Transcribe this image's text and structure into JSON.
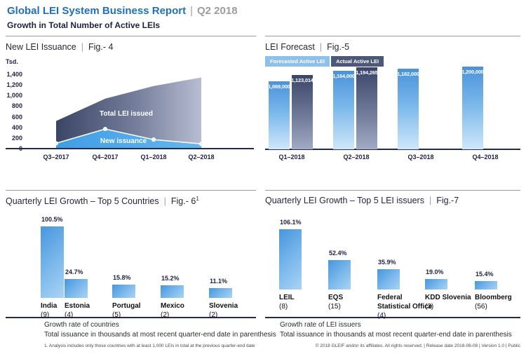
{
  "header": {
    "title": "Global LEI System Business Report",
    "separator": "|",
    "period": "Q2 2018",
    "subtitle": "Growth in Total Number of Active LEIs"
  },
  "ui": {
    "pipe": "|"
  },
  "colors": {
    "brand_blue": "#2170b8",
    "header_gray": "#9b9da0",
    "navy_text": "#1f2142",
    "title_text": "#26263e",
    "divider_gray": "#9a9a9a",
    "axis_navy": "#272a4e",
    "area_dark_start": "#3b4565",
    "area_dark_mid": "#757e9b",
    "area_dark_end": "#b7bdd1",
    "area_light_start": "#3f9ee4",
    "area_light_end": "#65b7ee",
    "forecast_top": "#4a92da",
    "forecast_mid": "#79b7ea",
    "forecast_bottom": "#cfe7fa",
    "actual_top": "#3a4569",
    "actual_mid": "#6f7998",
    "actual_bottom": "#a2abc4",
    "bar_blue_start": "#4796dd",
    "bar_blue_mid": "#7db9ec",
    "bar_blue_end": "#a8d4f4",
    "legend_forecast_bg": "#8fc0ea",
    "legend_actual_bg": "#4d5878",
    "caption_text": "#2b2b2b",
    "footnote_text": "#4a4a4a"
  },
  "chart_data": [
    {
      "id": "fig4",
      "type": "area",
      "title": "New LEI Issuance",
      "fig": "Fig.- 4",
      "ylabel": "Tsd.",
      "ylim": [
        0,
        1400
      ],
      "yticks": [
        0,
        200,
        400,
        600,
        800,
        1000,
        1200,
        1400
      ],
      "ytick_labels": [
        "0",
        "200",
        "400",
        "600",
        "800",
        "1,000",
        "1,200",
        "1,400"
      ],
      "categories": [
        "Q3–2017",
        "Q4–2017",
        "Q1–2018",
        "Q2–2018"
      ],
      "series": [
        {
          "name": "Total LEI issued",
          "values": [
            520,
            940,
            1180,
            1340
          ]
        },
        {
          "name": "New issuance",
          "values": [
            100,
            370,
            170,
            90
          ]
        }
      ],
      "grid": false,
      "legend_position": "in-chart"
    },
    {
      "id": "fig5",
      "type": "bar",
      "title": "LEI Forecast",
      "fig": "Fig.-5",
      "categories": [
        "Q1–2018",
        "Q2–2018",
        "Q3–2018",
        "Q4–2018"
      ],
      "series": [
        {
          "name": "Forecasted Active LEI",
          "values": [
            1069000,
            1164000,
            1182000,
            1200000
          ],
          "labels": [
            "1,069,000",
            "1,164,000",
            "1,182,000",
            "1,200,000"
          ]
        },
        {
          "name": "Actual Active LEI",
          "values": [
            1123014,
            1194265,
            null,
            null
          ],
          "labels": [
            "1,123,014",
            "1,194,265",
            null,
            null
          ]
        }
      ],
      "grid": false,
      "legend_position": "top-left"
    },
    {
      "id": "fig6",
      "type": "bar",
      "title": "Quarterly LEI Growth – Top 5 Countries",
      "fig": "Fig.- 6",
      "fig_sup": "1",
      "categories": [
        "India",
        "Estonia",
        "Portugal",
        "Mexico",
        "Slovenia"
      ],
      "counts": [
        "(9)",
        "(4)",
        "(5)",
        "(2)",
        "(2)"
      ],
      "values": [
        100.5,
        24.7,
        15.8,
        15.2,
        11.1
      ],
      "value_labels": [
        "100.5%",
        "24.7%",
        "15.8%",
        "15.2%",
        "11.1%"
      ],
      "caption": [
        "Growth rate of countries",
        "Total issuance in thousands at most recent quarter-end date in parenthesis"
      ],
      "footnote": "1. Analysis includes only those countries with at least 1,000 LEIs in total at the previous quarter-end date",
      "grid": false
    },
    {
      "id": "fig7",
      "type": "bar",
      "title": "Quarterly LEI Growth – Top 5 LEI issuers",
      "fig": "Fig.-7",
      "categories": [
        "LEIL",
        "EQS",
        "Federal Statistical Office",
        "KDD Slovenia",
        "Bloomberg"
      ],
      "category_lines": [
        [
          "LEIL"
        ],
        [
          "EQS"
        ],
        [
          "Federal",
          "Statistical Office"
        ],
        [
          "KDD Slovenia"
        ],
        [
          "Bloomberg"
        ]
      ],
      "counts": [
        "(8)",
        "(15)",
        "(4)",
        "(3)",
        "(56)"
      ],
      "values": [
        106.1,
        52.4,
        35.9,
        19.0,
        15.4
      ],
      "value_labels": [
        "106.1%",
        "52.4%",
        "35.9%",
        "19.0%",
        "15.4%"
      ],
      "caption": [
        "Growth rate of LEI issuers",
        "Total issuance in thousands at most recent quarter-end date in parenthesis"
      ],
      "grid": false
    }
  ],
  "footer": {
    "text": "© 2018 GLEIF and/or its affiliates. All rights reserved.  |  Release date 2018-08-08  |  Version 1.0  |  Public"
  }
}
